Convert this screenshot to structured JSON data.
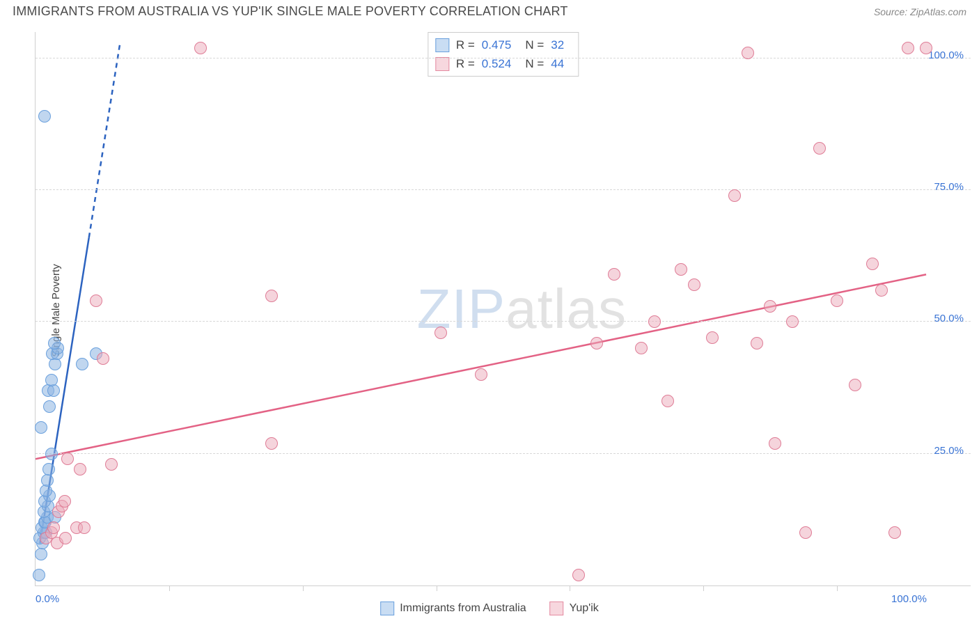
{
  "header": {
    "title": "IMMIGRANTS FROM AUSTRALIA VS YUP'IK SINGLE MALE POVERTY CORRELATION CHART",
    "source": "Source: ZipAtlas.com"
  },
  "ylabel": "Single Male Poverty",
  "watermark": {
    "z": "ZIP",
    "rest": "atlas"
  },
  "legend_rn": {
    "rows": [
      {
        "swatch_fill": "#c9ddf3",
        "swatch_border": "#6aa0dd",
        "r_label": "R =",
        "r_val": "0.475",
        "n_label": "N =",
        "n_val": "32"
      },
      {
        "swatch_fill": "#f7d7de",
        "swatch_border": "#e48aa0",
        "r_label": "R =",
        "r_val": "0.524",
        "n_label": "N =",
        "n_val": "44"
      }
    ]
  },
  "legend_bottom": [
    {
      "swatch_fill": "#c9ddf3",
      "swatch_border": "#6aa0dd",
      "label": "Immigrants from Australia"
    },
    {
      "swatch_fill": "#f7d7de",
      "swatch_border": "#e48aa0",
      "label": "Yup'ik"
    }
  ],
  "chart": {
    "type": "scatter",
    "xlim": [
      0,
      105
    ],
    "ylim": [
      0,
      105
    ],
    "grid_color": "#d8d8d8",
    "yticks": [
      {
        "v": 25,
        "label": "25.0%"
      },
      {
        "v": 50,
        "label": "50.0%"
      },
      {
        "v": 75,
        "label": "75.0%"
      },
      {
        "v": 100,
        "label": "100.0%"
      }
    ],
    "xticks_minor": [
      15,
      30,
      45,
      60,
      75,
      90
    ],
    "xticks_labeled": [
      {
        "v": 0,
        "label": "0.0%"
      },
      {
        "v": 100,
        "label": "100.0%"
      }
    ],
    "series": [
      {
        "name": "Immigrants from Australia",
        "color_fill": "rgba(140,180,225,0.55)",
        "color_border": "#6aa0dd",
        "marker_radius": 9,
        "trend": {
          "color": "#2c63c0",
          "width": 2.5,
          "solid": {
            "x1": 0.5,
            "y1": 8,
            "x2": 6,
            "y2": 66
          },
          "dashed": {
            "x1": 6,
            "y1": 66,
            "x2": 9.5,
            "y2": 103
          }
        },
        "points": [
          [
            0.4,
            2
          ],
          [
            0.6,
            6
          ],
          [
            0.8,
            8
          ],
          [
            0.5,
            9
          ],
          [
            0.9,
            10
          ],
          [
            1.2,
            10
          ],
          [
            0.7,
            11
          ],
          [
            1.0,
            12
          ],
          [
            1.1,
            12
          ],
          [
            1.3,
            13
          ],
          [
            0.9,
            14
          ],
          [
            1.4,
            15
          ],
          [
            1.0,
            16
          ],
          [
            1.6,
            17
          ],
          [
            1.2,
            18
          ],
          [
            1.3,
            20
          ],
          [
            2.2,
            13
          ],
          [
            1.5,
            22
          ],
          [
            1.8,
            25
          ],
          [
            0.6,
            30
          ],
          [
            1.6,
            34
          ],
          [
            1.4,
            37
          ],
          [
            2.0,
            37
          ],
          [
            1.8,
            39
          ],
          [
            2.2,
            42
          ],
          [
            1.9,
            44
          ],
          [
            2.4,
            44
          ],
          [
            2.5,
            45
          ],
          [
            2.1,
            46
          ],
          [
            6.8,
            44
          ],
          [
            5.2,
            42
          ],
          [
            1.0,
            89
          ]
        ]
      },
      {
        "name": "Yup'ik",
        "color_fill": "rgba(235,170,185,0.5)",
        "color_border": "#df7c96",
        "marker_radius": 9,
        "trend": {
          "color": "#e36285",
          "width": 2.5,
          "solid": {
            "x1": 0,
            "y1": 24,
            "x2": 100,
            "y2": 59
          }
        },
        "points": [
          [
            1.2,
            9
          ],
          [
            1.8,
            10
          ],
          [
            2.0,
            11
          ],
          [
            2.4,
            8
          ],
          [
            3.4,
            9
          ],
          [
            4.6,
            11
          ],
          [
            5.5,
            11
          ],
          [
            2.6,
            14
          ],
          [
            3.0,
            15
          ],
          [
            3.3,
            16
          ],
          [
            5.0,
            22
          ],
          [
            8.5,
            23
          ],
          [
            3.6,
            24
          ],
          [
            7.6,
            43
          ],
          [
            6.8,
            54
          ],
          [
            18.5,
            102
          ],
          [
            26.5,
            27
          ],
          [
            26.5,
            55
          ],
          [
            45.5,
            48
          ],
          [
            50.0,
            40
          ],
          [
            61.0,
            2
          ],
          [
            63.0,
            46
          ],
          [
            65.0,
            59
          ],
          [
            68.0,
            45
          ],
          [
            69.5,
            50
          ],
          [
            71.0,
            35
          ],
          [
            72.5,
            60
          ],
          [
            74.0,
            57
          ],
          [
            76.0,
            47
          ],
          [
            78.5,
            74
          ],
          [
            80.0,
            101
          ],
          [
            81.0,
            46
          ],
          [
            82.5,
            53
          ],
          [
            83.0,
            27
          ],
          [
            85.0,
            50
          ],
          [
            86.5,
            10
          ],
          [
            88.0,
            83
          ],
          [
            90.0,
            54
          ],
          [
            92.0,
            38
          ],
          [
            94.0,
            61
          ],
          [
            95.0,
            56
          ],
          [
            96.5,
            10
          ],
          [
            98.0,
            102
          ],
          [
            100.0,
            102
          ]
        ]
      }
    ]
  }
}
